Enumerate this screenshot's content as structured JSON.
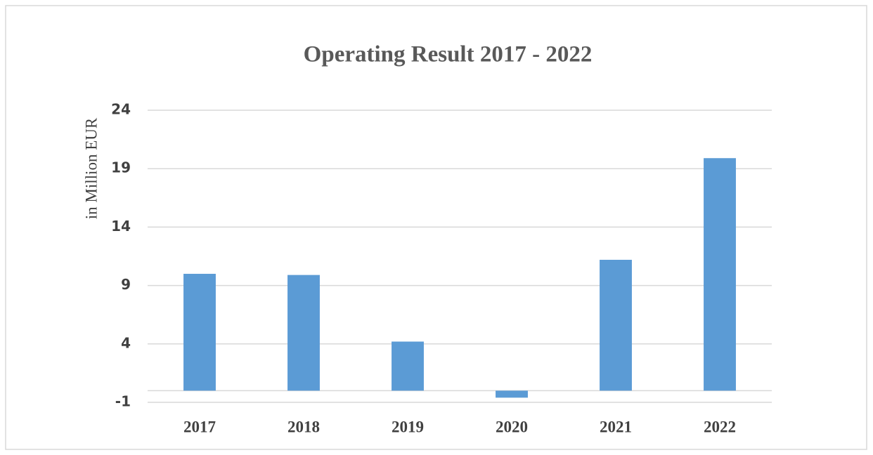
{
  "chart_data": {
    "type": "bar",
    "title": "Operating Result 2017 - 2022",
    "y_label": "in Million EUR",
    "categories": [
      "2017",
      "2018",
      "2019",
      "2020",
      "2021",
      "2022"
    ],
    "values": [
      10.0,
      9.9,
      4.2,
      -0.6,
      11.2,
      19.9
    ],
    "color": "#5b9bd5",
    "ylim": [
      -1,
      24
    ],
    "yticks": [
      -1,
      4,
      9,
      14,
      19,
      24
    ],
    "grid": true
  }
}
